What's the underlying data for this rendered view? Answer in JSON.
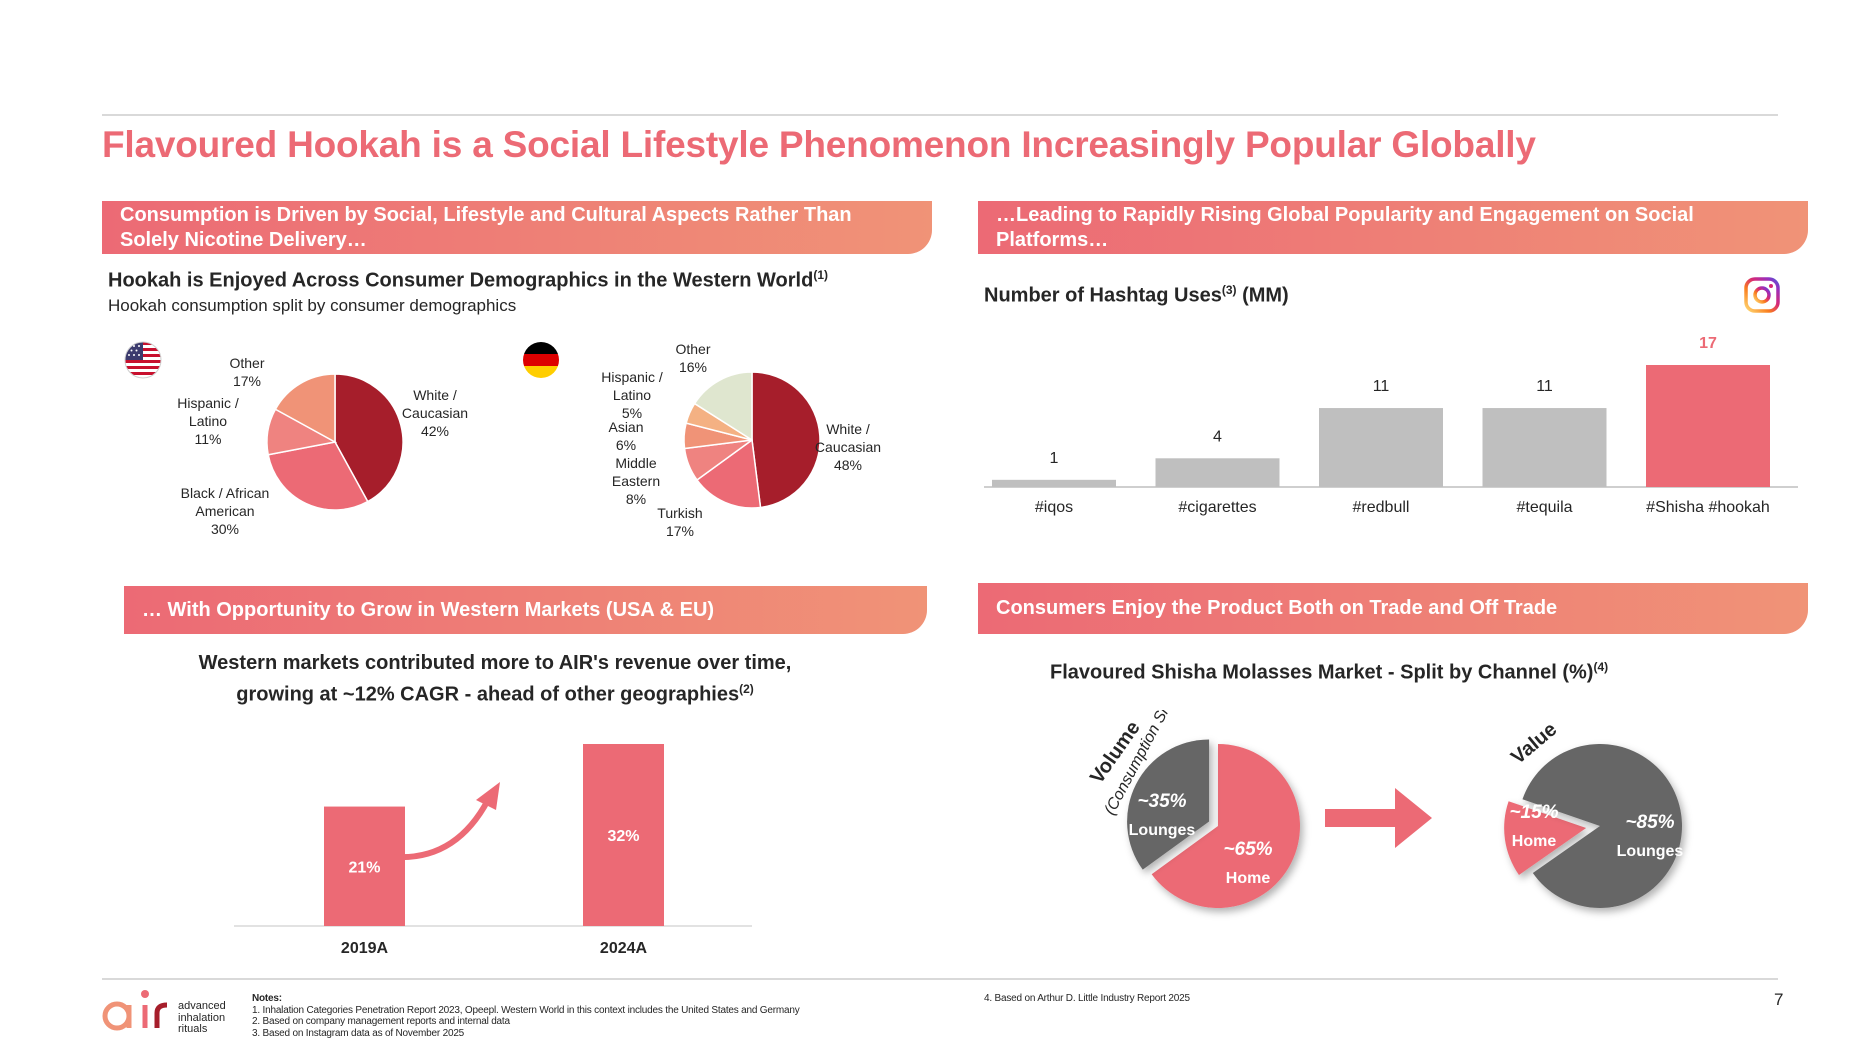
{
  "title": "Flavoured Hookah is a Social Lifestyle Phenomenon Increasingly Popular Globally",
  "colors": {
    "accent": "#ec6a75",
    "accent_dark": "#a61e2b",
    "accent_orange": "#f09377",
    "grey": "#bfbfbf",
    "dark_grey": "#595959"
  },
  "sections": {
    "top_left": {
      "banner": "Consumption is Driven by Social, Lifestyle and Cultural Aspects Rather Than Solely Nicotine Delivery…",
      "heading": "Hookah is Enjoyed Across Consumer Demographics in the Western World",
      "heading_sup": "(1)",
      "subheading": "Hookah consumption split by consumer demographics"
    },
    "top_right": {
      "banner": "…Leading to Rapidly Rising Global Popularity and Engagement on Social Platforms…",
      "chart_title": "Number of Hashtag Uses",
      "chart_title_sup": "(3)",
      "chart_title_suffix": " (MM)"
    },
    "bottom_left": {
      "banner": "… With Opportunity to Grow in Western Markets (USA & EU)",
      "heading_line1": "Western markets contributed more to AIR's revenue over time,",
      "heading_line2": "growing at ~12% CAGR - ahead of other geographies",
      "heading_sup": "(2)"
    },
    "bottom_right": {
      "banner": "Consumers Enjoy the Product Both on Trade and Off Trade",
      "heading": "Flavoured Shisha Molasses Market - Split by Channel (%)",
      "heading_sup": "(4)",
      "volume_label": "Volume",
      "volume_sub": "(Consumption Share)",
      "value_label": "Value"
    }
  },
  "chart_data": [
    {
      "type": "pie",
      "icon": "us-flag-icon",
      "slices": [
        {
          "label": "White / Caucasian",
          "value": 42,
          "color": "#a61e2b",
          "l1": "White /",
          "l2": "Caucasian",
          "l3": "42%"
        },
        {
          "label": "Black / African American",
          "value": 30,
          "color": "#ec6a75",
          "l1": "Black / African",
          "l2": "American",
          "l3": "30%"
        },
        {
          "label": "Hispanic / Latino",
          "value": 11,
          "color": "#ef8380",
          "l1": "Hispanic /",
          "l2": "Latino",
          "l3": "11%"
        },
        {
          "label": "Other",
          "value": 17,
          "color": "#f09377",
          "l1": "Other",
          "l2": "17%",
          "l3": ""
        }
      ]
    },
    {
      "type": "pie",
      "icon": "germany-flag-icon",
      "slices": [
        {
          "label": "White / Caucasian",
          "value": 48,
          "color": "#a61e2b",
          "l1": "White /",
          "l2": "Caucasian",
          "l3": "48%"
        },
        {
          "label": "Turkish",
          "value": 17,
          "color": "#ec6a75",
          "l1": "Turkish",
          "l2": "17%",
          "l3": ""
        },
        {
          "label": "Middle Eastern",
          "value": 8,
          "color": "#ef8380",
          "l1": "Middle",
          "l2": "Eastern",
          "l3": "8%"
        },
        {
          "label": "Asian",
          "value": 6,
          "color": "#f09377",
          "l1": "Asian",
          "l2": "6%",
          "l3": ""
        },
        {
          "label": "Hispanic / Latino",
          "value": 5,
          "color": "#f4b183",
          "l1": "Hispanic /",
          "l2": "Latino",
          "l3": "5%"
        },
        {
          "label": "Other",
          "value": 16,
          "color": "#dfe6cf",
          "l1": "Other",
          "l2": "16%",
          "l3": ""
        }
      ]
    },
    {
      "type": "bar",
      "categories": [
        "#iqos",
        "#cigarettes",
        "#redbull",
        "#tequila",
        "#Shisha #hookah"
      ],
      "values": [
        1,
        4,
        11,
        11,
        17
      ],
      "highlight_index": 4,
      "ylim": [
        0,
        17
      ]
    },
    {
      "type": "bar",
      "categories": [
        "2019A",
        "2024A"
      ],
      "values": [
        21,
        32
      ],
      "value_labels": [
        "21%",
        "32%"
      ],
      "ylim": [
        0,
        32
      ]
    },
    {
      "type": "pie",
      "name": "Volume",
      "slices": [
        {
          "label": "Home",
          "value": 65,
          "pct": "~65%",
          "color": "#ec6a75"
        },
        {
          "label": "Lounges",
          "value": 35,
          "pct": "~35%",
          "color": "#666666"
        }
      ]
    },
    {
      "type": "pie",
      "name": "Value",
      "slices": [
        {
          "label": "Home",
          "value": 15,
          "pct": "~15%",
          "color": "#ec6a75"
        },
        {
          "label": "Lounges",
          "value": 85,
          "pct": "~85%",
          "color": "#666666"
        }
      ]
    }
  ],
  "footer": {
    "notes_title": "Notes:",
    "notes": [
      "1.   Inhalation Categories Penetration Report 2023, Opeepl. Western World in this context includes the United States and Germany",
      "2.   Based on company management reports and internal data",
      "3.   Based on Instagram data as of November 2025"
    ],
    "note4": "4.   Based on Arthur D. Little Industry Report 2025",
    "page_number": "7",
    "logo_letters": "air",
    "logo_line1": "advanced",
    "logo_line2": "inhalation",
    "logo_line3": "rituals"
  }
}
